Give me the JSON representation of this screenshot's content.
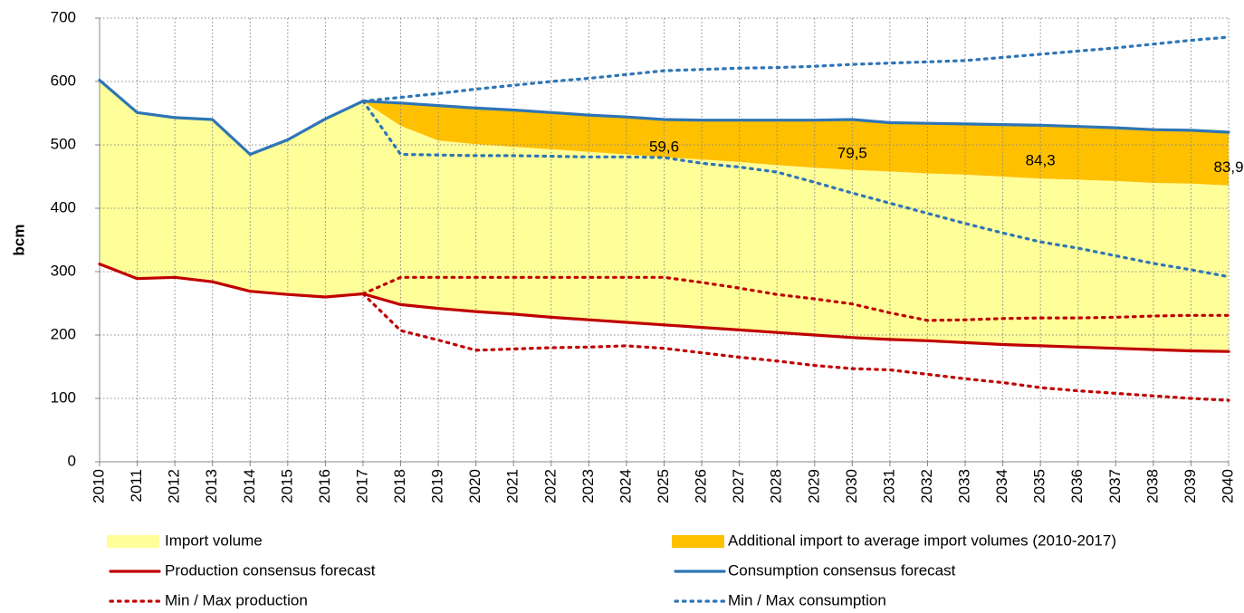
{
  "chart_data": {
    "type": "line",
    "y_label": "bcm",
    "categories": [
      "2010",
      "2011",
      "2012",
      "2013",
      "2014",
      "2015",
      "2016",
      "2017",
      "2018",
      "2019",
      "2020",
      "2021",
      "2022",
      "2023",
      "2024",
      "2025",
      "2026",
      "2027",
      "2028",
      "2029",
      "2030",
      "2031",
      "2032",
      "2033",
      "2034",
      "2035",
      "2036",
      "2037",
      "2038",
      "2039",
      "2040"
    ],
    "ylim": [
      0,
      700
    ],
    "yticks": [
      0,
      100,
      200,
      300,
      400,
      500,
      600,
      700
    ],
    "grid": true,
    "series": [
      {
        "name": "Import volume",
        "kind": "area",
        "color": "#ffff99",
        "values": [
          290,
          262,
          252,
          256,
          216,
          244,
          281,
          304,
          282,
          265,
          264,
          264,
          265,
          265,
          265,
          264.4,
          265,
          265,
          264,
          264,
          264.5,
          265,
          264,
          265,
          265,
          263.7,
          264,
          264,
          263,
          264,
          262.1
        ]
      },
      {
        "name": "Additional import to average import volumes (2010-2017)",
        "kind": "area",
        "color": "#ffc000",
        "values": [
          null,
          null,
          null,
          null,
          null,
          null,
          null,
          0,
          36,
          55,
          57,
          58,
          58,
          58,
          59,
          59.6,
          62,
          66,
          71,
          75,
          79.5,
          77,
          79,
          80,
          82,
          84.3,
          84,
          84,
          84,
          84,
          83.9
        ],
        "value_labels": [
          null,
          null,
          null,
          null,
          null,
          null,
          null,
          null,
          null,
          null,
          null,
          null,
          null,
          null,
          null,
          "59,6",
          null,
          null,
          null,
          null,
          "79,5",
          null,
          null,
          null,
          null,
          "84,3",
          null,
          null,
          null,
          null,
          "83,9"
        ]
      },
      {
        "name": "Production consensus forecast",
        "kind": "line",
        "color": "#c00000",
        "values": [
          312,
          289,
          291,
          284,
          269,
          264,
          260,
          265,
          248,
          242,
          237,
          233,
          228,
          224,
          220,
          216,
          212,
          208,
          204,
          200,
          196,
          193,
          191,
          188,
          185,
          183,
          181,
          179,
          177,
          175,
          174
        ]
      },
      {
        "name": "Consumption consensus forecast",
        "kind": "line",
        "color": "#2e75b6",
        "values": [
          602,
          551,
          543,
          540,
          485,
          508,
          541,
          569,
          566,
          562,
          558,
          555,
          551,
          547,
          544,
          540,
          539,
          539,
          539,
          539,
          540,
          535,
          534,
          533,
          532,
          531,
          529,
          527,
          524,
          523,
          520
        ]
      },
      {
        "name": "Min / Max production",
        "kind": "range",
        "dotted": true,
        "color": "#c00000",
        "max_values": [
          null,
          null,
          null,
          null,
          null,
          null,
          null,
          265,
          291,
          291,
          291,
          291,
          291,
          291,
          291,
          291,
          283,
          274,
          264,
          257,
          249,
          235,
          223,
          224,
          226,
          227,
          227,
          228,
          230,
          231,
          231
        ],
        "min_values": [
          null,
          null,
          null,
          null,
          null,
          null,
          null,
          265,
          207,
          192,
          176,
          178,
          180,
          181,
          183,
          179,
          172,
          165,
          159,
          152,
          147,
          145,
          138,
          131,
          125,
          117,
          112,
          108,
          104,
          100,
          97
        ]
      },
      {
        "name": "Min / Max consumption",
        "kind": "range",
        "dotted": true,
        "color": "#2e75b6",
        "max_values": [
          null,
          null,
          null,
          null,
          null,
          null,
          null,
          569,
          575,
          581,
          588,
          594,
          600,
          605,
          611,
          617,
          619,
          621,
          622,
          624,
          627,
          629,
          631,
          633,
          638,
          643,
          648,
          653,
          659,
          665,
          670
        ],
        "min_values": [
          null,
          null,
          null,
          null,
          null,
          null,
          null,
          569,
          485,
          484,
          483,
          483,
          482,
          481,
          481,
          480,
          471,
          465,
          457,
          441,
          424,
          408,
          392,
          376,
          361,
          347,
          337,
          325,
          313,
          303,
          292
        ]
      }
    ]
  }
}
